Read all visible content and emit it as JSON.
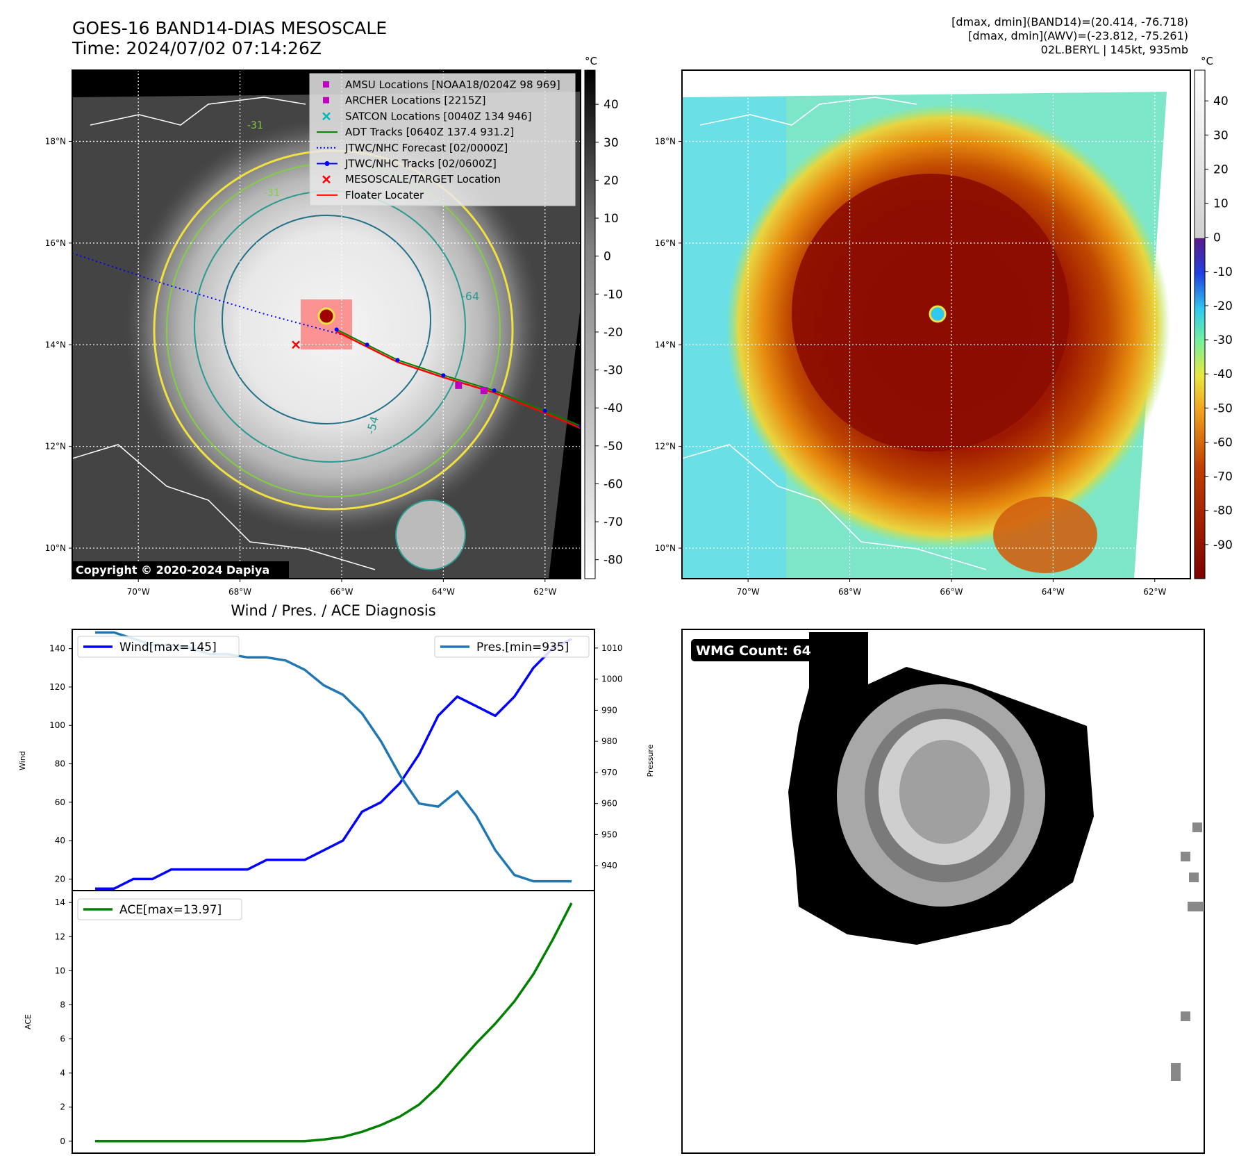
{
  "header": {
    "title_line1": "GOES-16 BAND14-DIAS MESOSCALE",
    "title_line2": "Time: 2024/07/02 07:14:26Z",
    "info_line1": "[dmax, dmin](BAND14)=(20.414, -76.718)",
    "info_line2": "[dmax, dmin](AWV)=(-23.812, -75.261)",
    "info_line3": "02L.BERYL | 145kt, 935mb"
  },
  "maps": {
    "lat_labels": [
      "18°N",
      "16°N",
      "14°N",
      "12°N",
      "10°N"
    ],
    "lon_labels": [
      "70°W",
      "68°W",
      "66°W",
      "64°W",
      "62°W"
    ],
    "lat_values": [
      18,
      16,
      14,
      12,
      10
    ],
    "lon_values": [
      -70,
      -68,
      -66,
      -64,
      -62
    ],
    "extent": {
      "lon_min": -71.3,
      "lon_max": -61.3,
      "lat_min": 9.4,
      "lat_max": 19.4
    },
    "copyright": "Copyright © 2020-2024 Dapiya",
    "contour_labels": [
      "-64",
      "-54",
      "-31",
      "-31"
    ],
    "legend": [
      {
        "label": "AMSU Locations [NOAA18/0204Z 98 969]",
        "marker": "square",
        "color": "#c000c0"
      },
      {
        "label": "ARCHER Locations [2215Z]",
        "marker": "square",
        "color": "#c000c0"
      },
      {
        "label": "SATCON Locations [0040Z 134 946]",
        "marker": "x",
        "color": "#00b8b8"
      },
      {
        "label": "ADT Tracks [0640Z 137.4 931.2]",
        "marker": "line",
        "color": "#008000"
      },
      {
        "label": "JTWC/NHC Forecast [02/0000Z]",
        "marker": "dotted",
        "color": "#0000ff"
      },
      {
        "label": "JTWC/NHC Tracks [02/0600Z]",
        "marker": "line-dot",
        "color": "#0000ff"
      },
      {
        "label": "MESOSCALE/TARGET Location",
        "marker": "x",
        "color": "#ff0000"
      },
      {
        "label": "Floater Locater",
        "marker": "line",
        "color": "#ff0000"
      }
    ],
    "forecast_track": [
      [
        -71.3,
        15.8
      ],
      [
        -69.5,
        15.2
      ],
      [
        -67.5,
        14.6
      ],
      [
        -66.0,
        14.2
      ]
    ],
    "observed_track": [
      [
        -66.1,
        14.3
      ],
      [
        -65.5,
        14.0
      ],
      [
        -64.9,
        13.7
      ],
      [
        -64.0,
        13.4
      ],
      [
        -63.0,
        13.1
      ],
      [
        -62.0,
        12.7
      ],
      [
        -61.3,
        12.4
      ]
    ],
    "target_location": [
      -66.9,
      14.0
    ],
    "amsu_points": [
      [
        -63.7,
        13.2
      ],
      [
        -63.2,
        13.1
      ]
    ],
    "eye_center": [
      -66.3,
      14.5
    ],
    "colorbar_left": {
      "unit": "°C",
      "ticks": [
        40,
        30,
        20,
        10,
        0,
        -10,
        -20,
        -30,
        -40,
        -50,
        -60,
        -70,
        -80
      ],
      "range": [
        -85,
        49
      ]
    },
    "colorbar_right": {
      "unit": "°C",
      "ticks": [
        40,
        30,
        20,
        10,
        0,
        -10,
        -20,
        -30,
        -40,
        -50,
        -60,
        -70,
        -80,
        -90
      ],
      "range": [
        -100,
        49
      ]
    }
  },
  "chart_data": [
    {
      "type": "line",
      "title": "Wind / Pres. / ACE Diagnosis",
      "ylabel": "Wind",
      "ylabel_right": "Pressure",
      "x": [
        0,
        1,
        2,
        3,
        4,
        5,
        6,
        7,
        8,
        9,
        10,
        11,
        12,
        13,
        14,
        15,
        16,
        17,
        18,
        19,
        20,
        21,
        22,
        23,
        24,
        25
      ],
      "ylim": [
        14,
        150
      ],
      "ylim_right": [
        932,
        1016
      ],
      "yticks": [
        20,
        40,
        60,
        80,
        100,
        120,
        140
      ],
      "yticks_right": [
        940,
        950,
        960,
        970,
        980,
        990,
        1000,
        1010
      ],
      "series": [
        {
          "name": "Wind[max=145]",
          "axis": "left",
          "color": "#0000ff",
          "values": [
            15,
            15,
            20,
            20,
            25,
            25,
            25,
            25,
            25,
            30,
            30,
            30,
            35,
            40,
            55,
            60,
            70,
            85,
            105,
            115,
            110,
            105,
            115,
            130,
            140,
            145
          ]
        },
        {
          "name": "Pres.[min=935]",
          "axis": "right",
          "color": "#1f77b4",
          "values": [
            1015,
            1015,
            1013,
            1011,
            1011,
            1010,
            1008,
            1008,
            1007,
            1007,
            1006,
            1003,
            998,
            995,
            989,
            980,
            969,
            960,
            959,
            964,
            956,
            945,
            937,
            935,
            935,
            935
          ]
        }
      ]
    },
    {
      "type": "line",
      "ylabel": "ACE",
      "x": [
        0,
        1,
        2,
        3,
        4,
        5,
        6,
        7,
        8,
        9,
        10,
        11,
        12,
        13,
        14,
        15,
        16,
        17,
        18,
        19,
        20,
        21,
        22,
        23,
        24,
        25
      ],
      "ylim": [
        -0.7,
        14.7
      ],
      "yticks": [
        0,
        2,
        4,
        6,
        8,
        10,
        12,
        14
      ],
      "series": [
        {
          "name": "ACE[max=13.97]",
          "color": "#008000",
          "values": [
            0,
            0,
            0,
            0,
            0,
            0,
            0,
            0,
            0,
            0,
            0,
            0,
            0.1,
            0.25,
            0.55,
            0.95,
            1.45,
            2.15,
            3.2,
            4.5,
            5.75,
            6.9,
            8.2,
            9.8,
            11.8,
            13.97
          ]
        }
      ]
    }
  ],
  "wmg": {
    "badge": "WMG Count: 64"
  }
}
